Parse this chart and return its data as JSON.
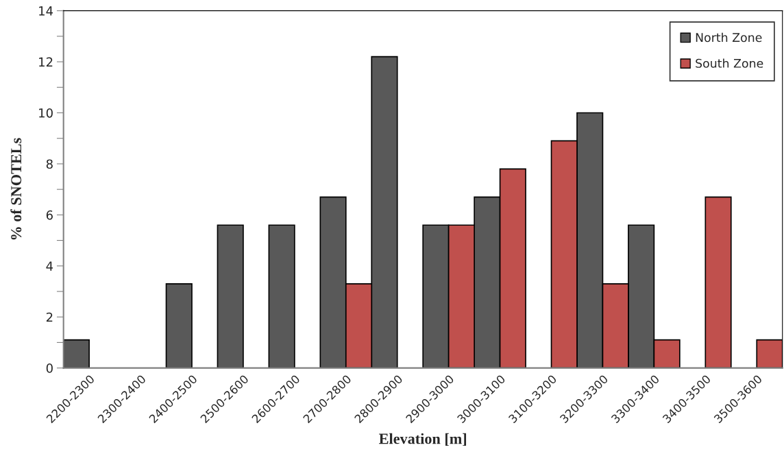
{
  "chart_data": {
    "type": "bar",
    "xlabel": "Elevation [m]",
    "ylabel": "% of SNOTELs",
    "categories": [
      "2200-2300",
      "2300-2400",
      "2400-2500",
      "2500-2600",
      "2600-2700",
      "2700-2800",
      "2800-2900",
      "2900-3000",
      "3000-3100",
      "3100-3200",
      "3200-3300",
      "3300-3400",
      "3400-3500",
      "3500-3600"
    ],
    "series": [
      {
        "name": "North Zone",
        "color": "#595959",
        "values": [
          1.1,
          null,
          3.3,
          5.6,
          5.6,
          6.7,
          12.2,
          5.6,
          6.7,
          null,
          10,
          5.6,
          null,
          null
        ]
      },
      {
        "name": "South Zone",
        "color": "#c0504d",
        "values": [
          null,
          null,
          null,
          null,
          null,
          3.3,
          null,
          5.6,
          7.8,
          8.9,
          3.3,
          1.1,
          6.7,
          1.1
        ]
      }
    ],
    "ylim": [
      0,
      14
    ],
    "yticks": [
      0,
      {
        "value": 1,
        "label": null
      },
      2,
      {
        "value": 3,
        "label": null
      },
      4,
      {
        "value": 5,
        "label": null
      },
      6,
      {
        "value": 7,
        "label": null
      },
      8,
      {
        "value": 9,
        "label": null
      },
      10,
      {
        "value": 11,
        "label": null
      },
      12,
      {
        "value": 13,
        "label": null
      },
      14
    ],
    "grid": false,
    "legend": "top right"
  }
}
